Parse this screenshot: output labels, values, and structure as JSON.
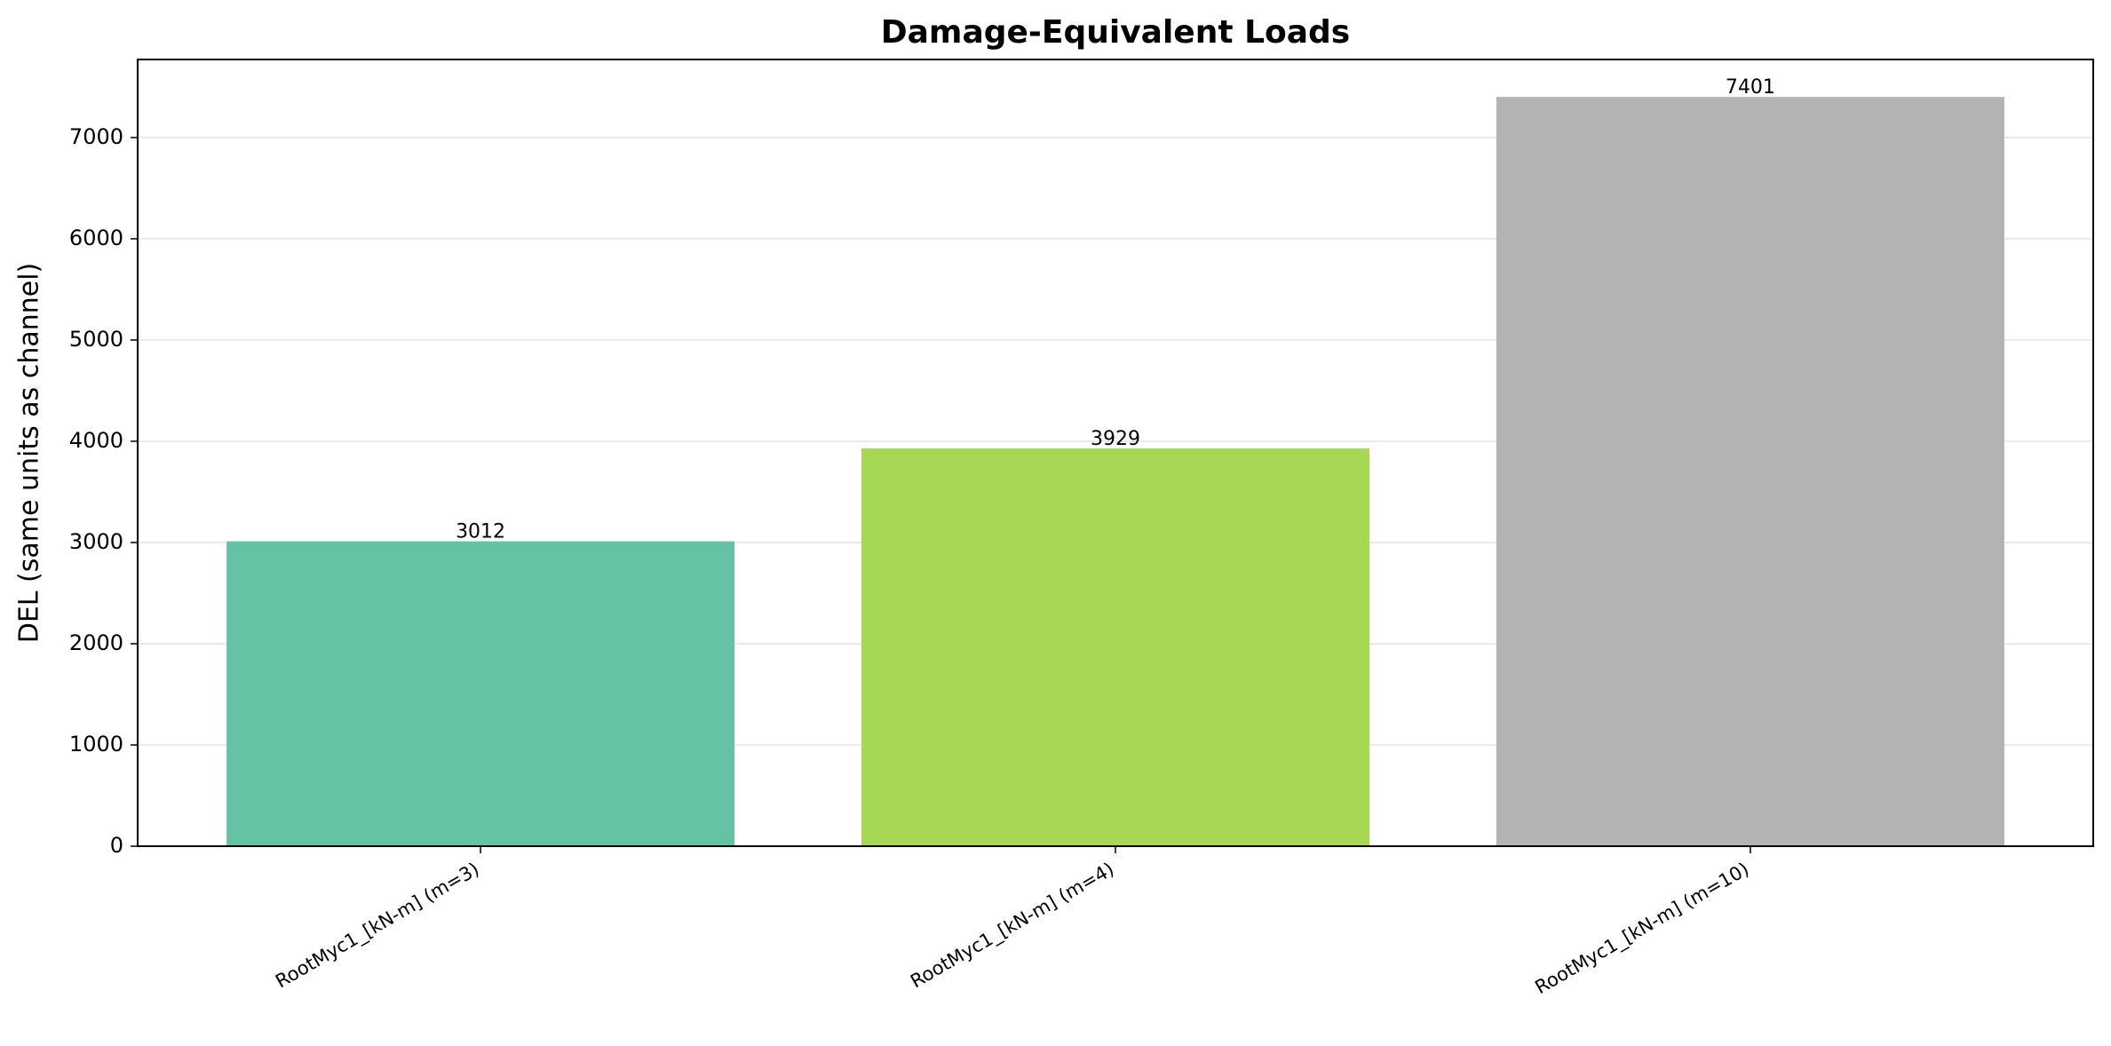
{
  "chart_data": {
    "type": "bar",
    "title": "Damage-Equivalent Loads",
    "ylabel": "DEL (same units as channel)",
    "categories": [
      "RootMyc1_[kN-m] (m=3)",
      "RootMyc1_[kN-m] (m=4)",
      "RootMyc1_[kN-m] (m=10)"
    ],
    "values": [
      3012,
      3929,
      7401
    ],
    "colors": [
      "#66c2a5",
      "#a6d854",
      "#b3b3b3"
    ],
    "ylim": [
      0,
      7771
    ],
    "yticks": [
      0,
      1000,
      2000,
      3000,
      4000,
      5000,
      6000,
      7000
    ],
    "grid": true
  }
}
